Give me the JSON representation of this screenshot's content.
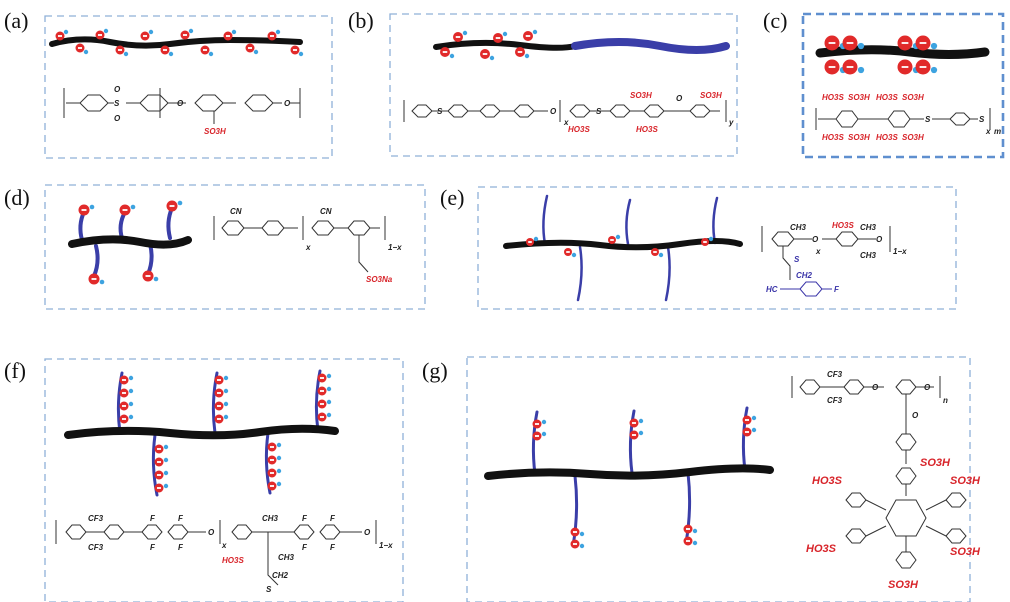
{
  "panels": [
    {
      "id": "a",
      "label": "(a)"
    },
    {
      "id": "b",
      "label": "(b)"
    },
    {
      "id": "c",
      "label": "(c)"
    },
    {
      "id": "d",
      "label": "(d)"
    },
    {
      "id": "e",
      "label": "(e)"
    },
    {
      "id": "f",
      "label": "(f)"
    },
    {
      "id": "g",
      "label": "(g)"
    }
  ],
  "chem": {
    "so3h": "SO3H",
    "ho3s": "HO3S",
    "so3na": "SO3Na",
    "cn": "CN",
    "ch3": "CH3",
    "ch2": "CH2",
    "cf3": "CF3",
    "s": "S",
    "o": "O",
    "f": "F",
    "hc": "HC",
    "x": "x",
    "y": "y",
    "m": "m",
    "n": "n",
    "one_minus_x": "1−x"
  },
  "colors": {
    "backbone": "#111111",
    "side_chain": "#3a3ea8",
    "acid_group": "#e12a2a",
    "proton": "#3da3e0",
    "box_border": "#8fb0d8",
    "chem_red": "#d8242a"
  }
}
